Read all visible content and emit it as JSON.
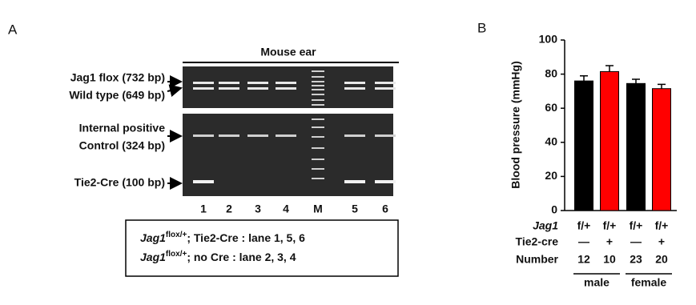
{
  "panel_a": {
    "label": "A",
    "gel_title": "Mouse ear",
    "band_labels": [
      "Jag1 flox (732 bp)",
      "Wild type (649 bp)",
      "Internal positive",
      "Control (324 bp)",
      "Tie2-Cre (100 bp)"
    ],
    "lanes": [
      "1",
      "2",
      "3",
      "4",
      "M",
      "5",
      "6"
    ],
    "legend": [
      {
        "gene": "Jag1",
        "sup": "flox/+",
        "text": "; Tie2-Cre : lane 1, 5, 6"
      },
      {
        "gene": "Jag1",
        "sup": "flox/+",
        "text": "; no Cre : lane 2, 3, 4"
      }
    ]
  },
  "chart_data": {
    "type": "bar",
    "panel_label": "B",
    "y_label": "Blood pressure  (mmHg)",
    "values": [
      76,
      81.5,
      74.5,
      71.5
    ],
    "errors": [
      3,
      3.5,
      2.5,
      2.5
    ],
    "colors": [
      "#000000",
      "#ff0000",
      "#000000",
      "#ff0000"
    ],
    "ylim": [
      0,
      100
    ],
    "yticks": [
      0,
      20,
      40,
      60,
      80,
      100
    ],
    "table": {
      "rows": [
        {
          "label": "Jag1",
          "cells": [
            "f/+",
            "f/+",
            "f/+",
            "f/+"
          ]
        },
        {
          "label": "Tie2-cre",
          "cells": [
            "—",
            "+",
            "—",
            "+"
          ]
        },
        {
          "label": "Number",
          "cells": [
            "12",
            "10",
            "23",
            "20"
          ]
        }
      ]
    },
    "groups": [
      "male",
      "female"
    ]
  }
}
